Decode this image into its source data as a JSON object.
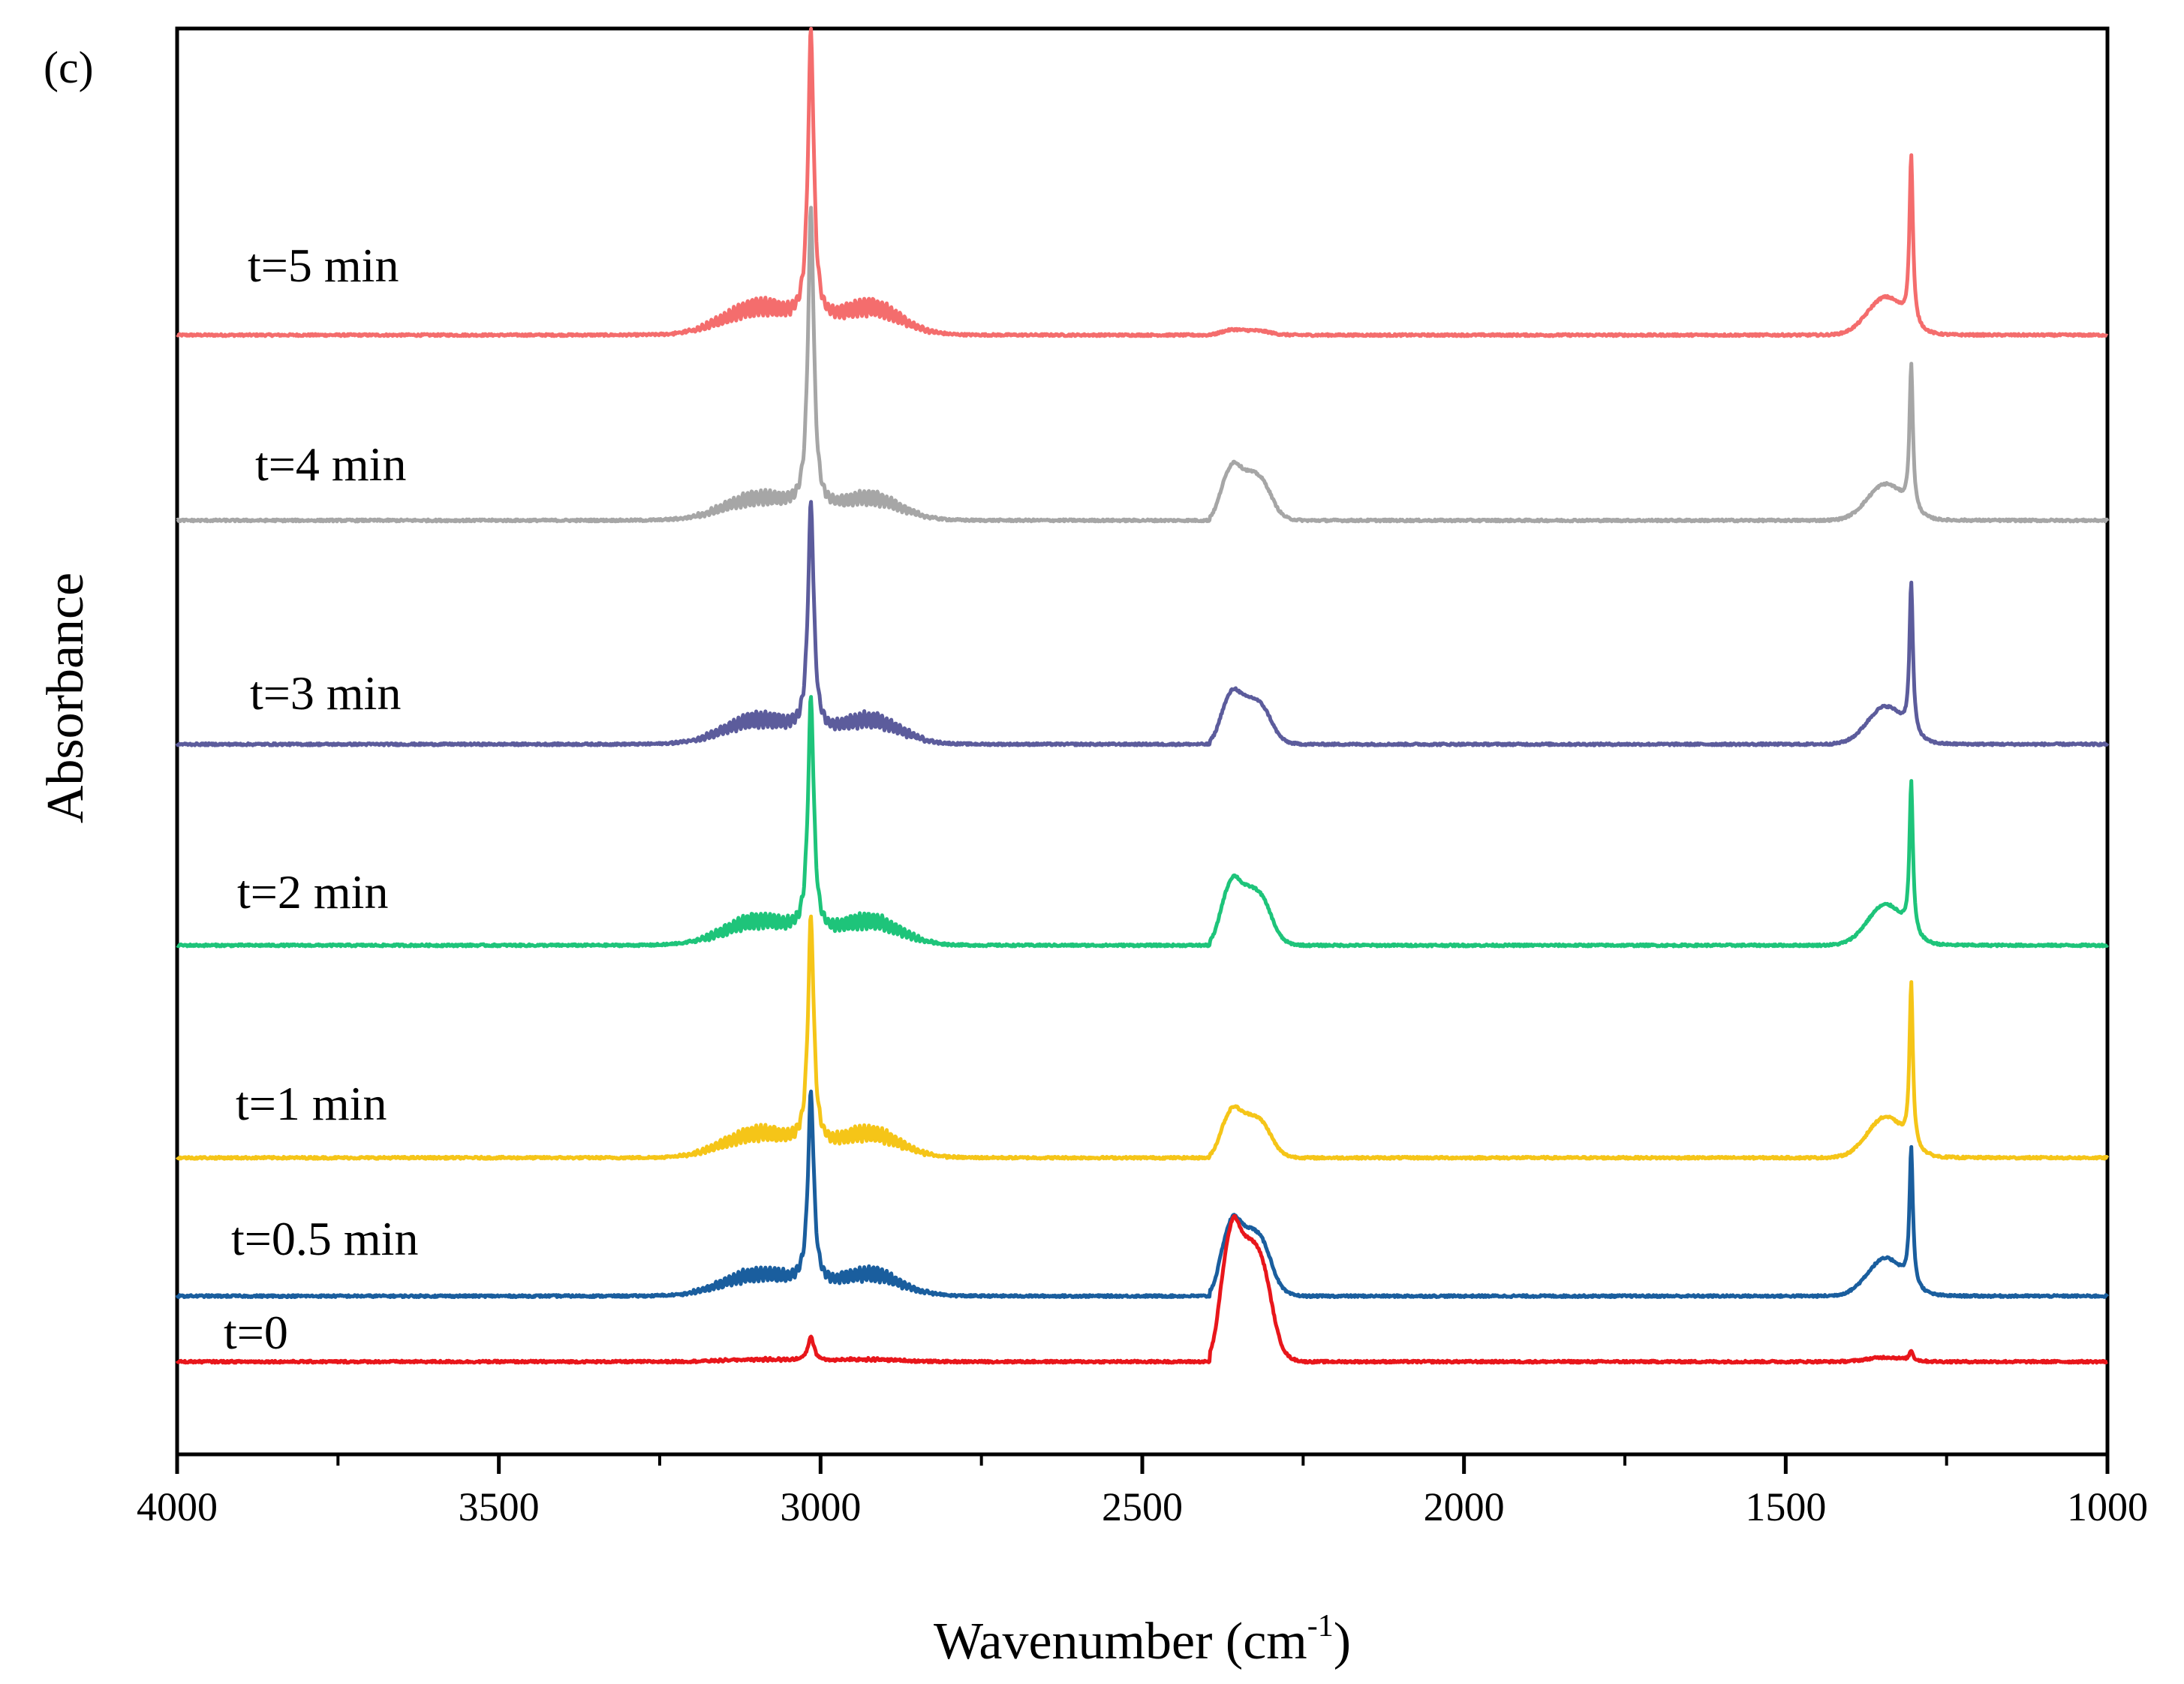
{
  "panel_label": "(c)",
  "chart_data": {
    "type": "line",
    "title": "",
    "xlabel_main": "Wavenumber (cm",
    "xlabel_sup": "-1",
    "xlabel_close": ")",
    "ylabel": "Absorbance",
    "xlim": [
      4000,
      1000
    ],
    "x_ticks": [
      4000,
      3500,
      3000,
      2500,
      2000,
      1500,
      1000
    ],
    "x_tick_labels": [
      "4000",
      "3500",
      "3000",
      "2500",
      "2000",
      "1500",
      "1000"
    ],
    "x_minor_step": 250,
    "y_ticks_shown": false,
    "ylim": [
      0,
      1
    ],
    "grid": false,
    "legend": "inline labels",
    "series": [
      {
        "name": "t=5 min",
        "color": "#f46d6d",
        "baseline": 0.785,
        "peak3015": 0.203,
        "band3100": 0.025,
        "band2920": 0.025,
        "co2": 0.004,
        "band1350": 0.026,
        "peak1305": 0.118
      },
      {
        "name": "t=4 min",
        "color": "#a6a6a6",
        "baseline": 0.655,
        "peak3015": 0.21,
        "band3100": 0.02,
        "band2920": 0.02,
        "co2": 0.042,
        "band1350": 0.025,
        "peak1305": 0.101
      },
      {
        "name": "t=3 min",
        "color": "#5c5c9c",
        "baseline": 0.498,
        "peak3015": 0.16,
        "band3100": 0.022,
        "band2920": 0.022,
        "co2": 0.04,
        "band1350": 0.026,
        "peak1305": 0.105
      },
      {
        "name": "t=2 min",
        "color": "#1ec47a",
        "baseline": 0.357,
        "peak3015": 0.165,
        "band3100": 0.022,
        "band2920": 0.022,
        "co2": 0.05,
        "band1350": 0.028,
        "peak1305": 0.105
      },
      {
        "name": "t=1 min",
        "color": "#f5c518",
        "baseline": 0.208,
        "peak3015": 0.16,
        "band3100": 0.022,
        "band2920": 0.022,
        "co2": 0.037,
        "band1350": 0.028,
        "peak1305": 0.113
      },
      {
        "name": "t=0.5 min",
        "color": "#1a5e9e",
        "baseline": 0.111,
        "peak3015": 0.135,
        "band3100": 0.02,
        "band2920": 0.02,
        "co2": 0.058,
        "band1350": 0.026,
        "peak1305": 0.095
      },
      {
        "name": "t=0",
        "color": "#e8161b",
        "baseline": 0.065,
        "peak3015": 0.017,
        "band3100": 0.002,
        "band2920": 0.002,
        "co2": 0.104,
        "band1350": 0.003,
        "peak1305": 0.007
      }
    ]
  }
}
